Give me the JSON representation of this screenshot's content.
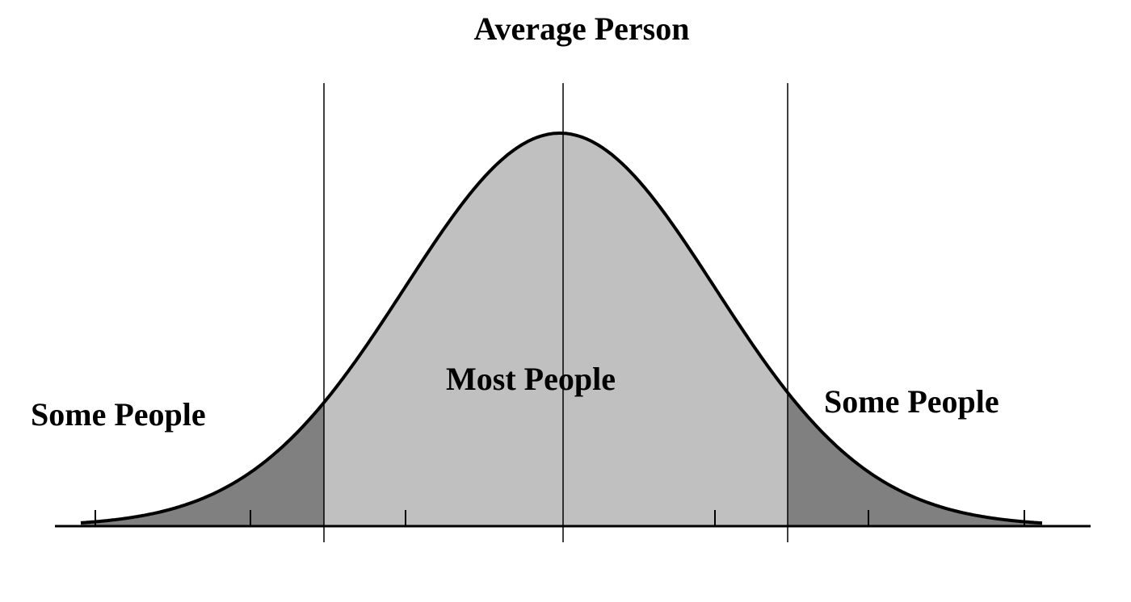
{
  "labels": {
    "top": "Average Person",
    "center": "Most People",
    "left": "Some People",
    "right": "Some People"
  }
}
